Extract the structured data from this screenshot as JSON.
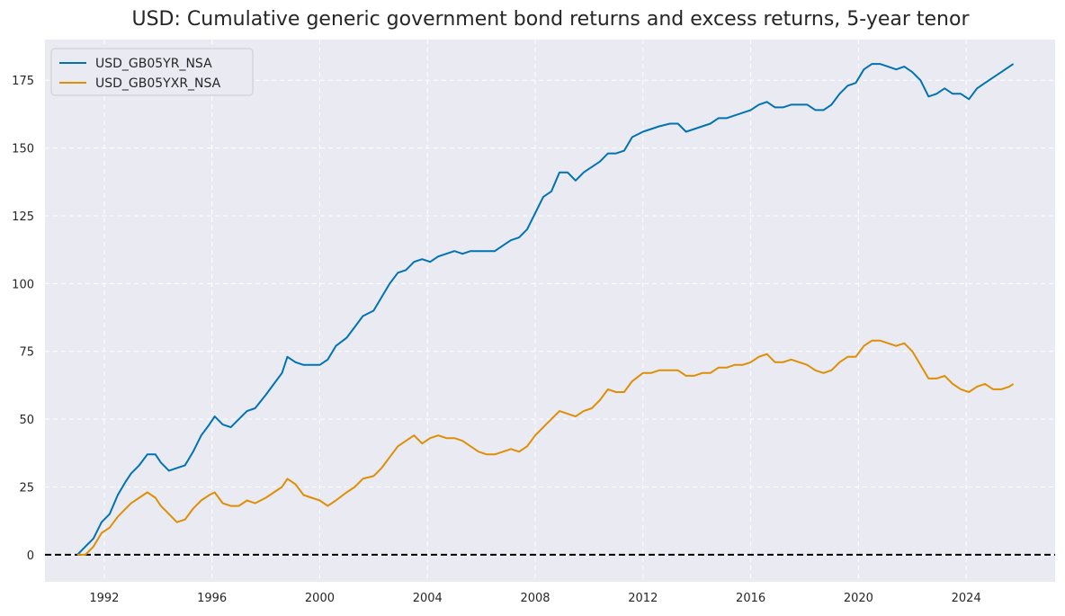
{
  "chart_data": {
    "type": "line",
    "title": "USD: Cumulative generic government bond returns and excess returns, 5-year tenor",
    "xlabel": "",
    "ylabel": "",
    "xlim": [
      1989.8,
      2027.3
    ],
    "ylim": [
      -10,
      190
    ],
    "x_ticks": [
      1992,
      1996,
      2000,
      2004,
      2008,
      2012,
      2016,
      2020,
      2024
    ],
    "y_ticks": [
      0,
      25,
      50,
      75,
      100,
      125,
      150,
      175
    ],
    "grid": true,
    "legend_position": "top-left",
    "reference_line": {
      "y": 0,
      "style": "dashed",
      "color": "#000000"
    },
    "background": "#eaeaf2",
    "series": [
      {
        "name": "USD_GB05YR_NSA",
        "color": "#0173b2",
        "points": [
          [
            1991.0,
            0
          ],
          [
            1991.3,
            3
          ],
          [
            1991.6,
            6
          ],
          [
            1991.9,
            12
          ],
          [
            1992.2,
            15
          ],
          [
            1992.5,
            22
          ],
          [
            1992.8,
            27
          ],
          [
            1993.0,
            30
          ],
          [
            1993.3,
            33
          ],
          [
            1993.6,
            37
          ],
          [
            1993.9,
            37
          ],
          [
            1994.1,
            34
          ],
          [
            1994.4,
            31
          ],
          [
            1994.7,
            32
          ],
          [
            1995.0,
            33
          ],
          [
            1995.3,
            38
          ],
          [
            1995.6,
            44
          ],
          [
            1995.9,
            48
          ],
          [
            1996.1,
            51
          ],
          [
            1996.4,
            48
          ],
          [
            1996.7,
            47
          ],
          [
            1997.0,
            50
          ],
          [
            1997.3,
            53
          ],
          [
            1997.6,
            54
          ],
          [
            1998.0,
            59
          ],
          [
            1998.3,
            63
          ],
          [
            1998.6,
            67
          ],
          [
            1998.8,
            73
          ],
          [
            1999.1,
            71
          ],
          [
            1999.4,
            70
          ],
          [
            1999.7,
            70
          ],
          [
            2000.0,
            70
          ],
          [
            2000.3,
            72
          ],
          [
            2000.6,
            77
          ],
          [
            2001.0,
            80
          ],
          [
            2001.3,
            84
          ],
          [
            2001.6,
            88
          ],
          [
            2002.0,
            90
          ],
          [
            2002.3,
            95
          ],
          [
            2002.6,
            100
          ],
          [
            2002.9,
            104
          ],
          [
            2003.2,
            105
          ],
          [
            2003.5,
            108
          ],
          [
            2003.8,
            109
          ],
          [
            2004.1,
            108
          ],
          [
            2004.4,
            110
          ],
          [
            2004.7,
            111
          ],
          [
            2005.0,
            112
          ],
          [
            2005.3,
            111
          ],
          [
            2005.6,
            112
          ],
          [
            2005.9,
            112
          ],
          [
            2006.2,
            112
          ],
          [
            2006.5,
            112
          ],
          [
            2006.8,
            114
          ],
          [
            2007.1,
            116
          ],
          [
            2007.4,
            117
          ],
          [
            2007.7,
            120
          ],
          [
            2008.0,
            126
          ],
          [
            2008.3,
            132
          ],
          [
            2008.6,
            134
          ],
          [
            2008.9,
            141
          ],
          [
            2009.2,
            141
          ],
          [
            2009.5,
            138
          ],
          [
            2009.8,
            141
          ],
          [
            2010.1,
            143
          ],
          [
            2010.4,
            145
          ],
          [
            2010.7,
            148
          ],
          [
            2011.0,
            148
          ],
          [
            2011.3,
            149
          ],
          [
            2011.6,
            154
          ],
          [
            2012.0,
            156
          ],
          [
            2012.3,
            157
          ],
          [
            2012.6,
            158
          ],
          [
            2013.0,
            159
          ],
          [
            2013.3,
            159
          ],
          [
            2013.6,
            156
          ],
          [
            2013.9,
            157
          ],
          [
            2014.2,
            158
          ],
          [
            2014.5,
            159
          ],
          [
            2014.8,
            161
          ],
          [
            2015.1,
            161
          ],
          [
            2015.4,
            162
          ],
          [
            2015.7,
            163
          ],
          [
            2016.0,
            164
          ],
          [
            2016.3,
            166
          ],
          [
            2016.6,
            167
          ],
          [
            2016.9,
            165
          ],
          [
            2017.2,
            165
          ],
          [
            2017.5,
            166
          ],
          [
            2017.8,
            166
          ],
          [
            2018.1,
            166
          ],
          [
            2018.4,
            164
          ],
          [
            2018.7,
            164
          ],
          [
            2019.0,
            166
          ],
          [
            2019.3,
            170
          ],
          [
            2019.6,
            173
          ],
          [
            2019.9,
            174
          ],
          [
            2020.2,
            179
          ],
          [
            2020.5,
            181
          ],
          [
            2020.8,
            181
          ],
          [
            2021.1,
            180
          ],
          [
            2021.4,
            179
          ],
          [
            2021.7,
            180
          ],
          [
            2022.0,
            178
          ],
          [
            2022.3,
            175
          ],
          [
            2022.6,
            169
          ],
          [
            2022.9,
            170
          ],
          [
            2023.2,
            172
          ],
          [
            2023.5,
            170
          ],
          [
            2023.8,
            170
          ],
          [
            2024.1,
            168
          ],
          [
            2024.4,
            172
          ],
          [
            2024.7,
            174
          ],
          [
            2025.0,
            176
          ],
          [
            2025.3,
            178
          ],
          [
            2025.6,
            180
          ],
          [
            2025.75,
            181
          ]
        ]
      },
      {
        "name": "USD_GB05YXR_NSA",
        "color": "#de8f05",
        "points": [
          [
            1991.0,
            0
          ],
          [
            1991.3,
            0
          ],
          [
            1991.6,
            3
          ],
          [
            1991.9,
            8
          ],
          [
            1992.2,
            10
          ],
          [
            1992.5,
            14
          ],
          [
            1992.8,
            17
          ],
          [
            1993.0,
            19
          ],
          [
            1993.3,
            21
          ],
          [
            1993.6,
            23
          ],
          [
            1993.9,
            21
          ],
          [
            1994.1,
            18
          ],
          [
            1994.4,
            15
          ],
          [
            1994.7,
            12
          ],
          [
            1995.0,
            13
          ],
          [
            1995.3,
            17
          ],
          [
            1995.6,
            20
          ],
          [
            1995.9,
            22
          ],
          [
            1996.1,
            23
          ],
          [
            1996.4,
            19
          ],
          [
            1996.7,
            18
          ],
          [
            1997.0,
            18
          ],
          [
            1997.3,
            20
          ],
          [
            1997.6,
            19
          ],
          [
            1998.0,
            21
          ],
          [
            1998.3,
            23
          ],
          [
            1998.6,
            25
          ],
          [
            1998.8,
            28
          ],
          [
            1999.1,
            26
          ],
          [
            1999.4,
            22
          ],
          [
            1999.7,
            21
          ],
          [
            2000.0,
            20
          ],
          [
            2000.3,
            18
          ],
          [
            2000.6,
            20
          ],
          [
            2001.0,
            23
          ],
          [
            2001.3,
            25
          ],
          [
            2001.6,
            28
          ],
          [
            2002.0,
            29
          ],
          [
            2002.3,
            32
          ],
          [
            2002.6,
            36
          ],
          [
            2002.9,
            40
          ],
          [
            2003.2,
            42
          ],
          [
            2003.5,
            44
          ],
          [
            2003.8,
            41
          ],
          [
            2004.1,
            43
          ],
          [
            2004.4,
            44
          ],
          [
            2004.7,
            43
          ],
          [
            2005.0,
            43
          ],
          [
            2005.3,
            42
          ],
          [
            2005.6,
            40
          ],
          [
            2005.9,
            38
          ],
          [
            2006.2,
            37
          ],
          [
            2006.5,
            37
          ],
          [
            2006.8,
            38
          ],
          [
            2007.1,
            39
          ],
          [
            2007.4,
            38
          ],
          [
            2007.7,
            40
          ],
          [
            2008.0,
            44
          ],
          [
            2008.3,
            47
          ],
          [
            2008.6,
            50
          ],
          [
            2008.9,
            53
          ],
          [
            2009.2,
            52
          ],
          [
            2009.5,
            51
          ],
          [
            2009.8,
            53
          ],
          [
            2010.1,
            54
          ],
          [
            2010.4,
            57
          ],
          [
            2010.7,
            61
          ],
          [
            2011.0,
            60
          ],
          [
            2011.3,
            60
          ],
          [
            2011.6,
            64
          ],
          [
            2012.0,
            67
          ],
          [
            2012.3,
            67
          ],
          [
            2012.6,
            68
          ],
          [
            2013.0,
            68
          ],
          [
            2013.3,
            68
          ],
          [
            2013.6,
            66
          ],
          [
            2013.9,
            66
          ],
          [
            2014.2,
            67
          ],
          [
            2014.5,
            67
          ],
          [
            2014.8,
            69
          ],
          [
            2015.1,
            69
          ],
          [
            2015.4,
            70
          ],
          [
            2015.7,
            70
          ],
          [
            2016.0,
            71
          ],
          [
            2016.3,
            73
          ],
          [
            2016.6,
            74
          ],
          [
            2016.9,
            71
          ],
          [
            2017.2,
            71
          ],
          [
            2017.5,
            72
          ],
          [
            2017.8,
            71
          ],
          [
            2018.1,
            70
          ],
          [
            2018.4,
            68
          ],
          [
            2018.7,
            67
          ],
          [
            2019.0,
            68
          ],
          [
            2019.3,
            71
          ],
          [
            2019.6,
            73
          ],
          [
            2019.9,
            73
          ],
          [
            2020.2,
            77
          ],
          [
            2020.5,
            79
          ],
          [
            2020.8,
            79
          ],
          [
            2021.1,
            78
          ],
          [
            2021.4,
            77
          ],
          [
            2021.7,
            78
          ],
          [
            2022.0,
            75
          ],
          [
            2022.3,
            70
          ],
          [
            2022.6,
            65
          ],
          [
            2022.9,
            65
          ],
          [
            2023.2,
            66
          ],
          [
            2023.5,
            63
          ],
          [
            2023.8,
            61
          ],
          [
            2024.1,
            60
          ],
          [
            2024.4,
            62
          ],
          [
            2024.7,
            63
          ],
          [
            2025.0,
            61
          ],
          [
            2025.3,
            61
          ],
          [
            2025.6,
            62
          ],
          [
            2025.75,
            63
          ]
        ]
      }
    ]
  }
}
